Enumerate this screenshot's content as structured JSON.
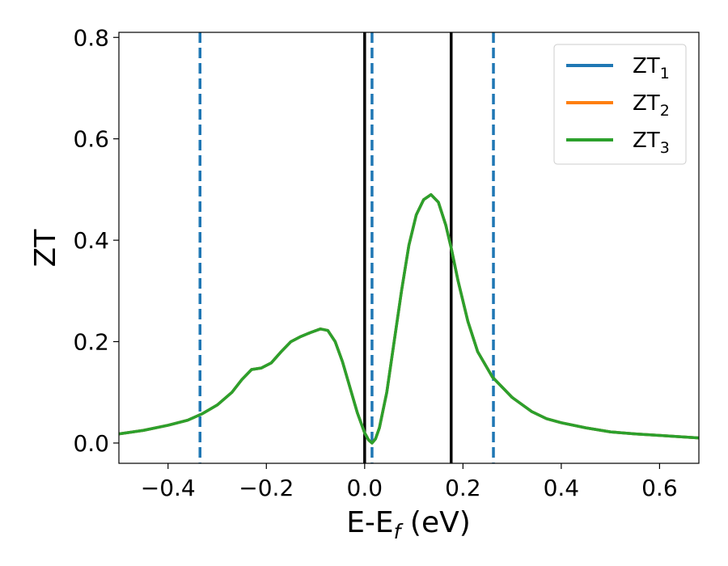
{
  "chart_data": {
    "type": "line",
    "xlabel": "E-E",
    "xlabel_subscript": "f",
    "xlabel_suffix": " (eV)",
    "ylabel": "ZT",
    "xlim": [
      -0.5,
      0.68
    ],
    "ylim": [
      -0.04,
      0.81
    ],
    "xticks": [
      -0.4,
      -0.2,
      0.0,
      0.2,
      0.4,
      0.6
    ],
    "xtick_labels": [
      "−0.4",
      "−0.2",
      "0.0",
      "0.2",
      "0.4",
      "0.6"
    ],
    "yticks": [
      0.0,
      0.2,
      0.4,
      0.6,
      0.8
    ],
    "ytick_labels": [
      "0.0",
      "0.2",
      "0.4",
      "0.6",
      "0.8"
    ],
    "grid": false,
    "legend_position": "top-right",
    "series": [
      {
        "name": "ZT",
        "subscript": "1",
        "color": "#1f77b4",
        "x": [
          -0.5,
          -0.45,
          -0.4,
          -0.36,
          -0.33,
          -0.3,
          -0.27,
          -0.25,
          -0.23,
          -0.21,
          -0.19,
          -0.17,
          -0.15,
          -0.13,
          -0.11,
          -0.09,
          -0.075,
          -0.06,
          -0.045,
          -0.03,
          -0.015,
          0.0,
          0.008,
          0.015,
          0.022,
          0.03,
          0.045,
          0.06,
          0.075,
          0.09,
          0.105,
          0.12,
          0.135,
          0.15,
          0.165,
          0.176,
          0.19,
          0.21,
          0.23,
          0.26,
          0.3,
          0.34,
          0.37,
          0.4,
          0.45,
          0.5,
          0.55,
          0.6,
          0.68
        ],
        "y": [
          0.018,
          0.025,
          0.035,
          0.045,
          0.058,
          0.075,
          0.1,
          0.125,
          0.145,
          0.148,
          0.158,
          0.18,
          0.2,
          0.21,
          0.218,
          0.225,
          0.222,
          0.2,
          0.16,
          0.11,
          0.06,
          0.02,
          0.006,
          0.0,
          0.008,
          0.03,
          0.1,
          0.2,
          0.3,
          0.39,
          0.45,
          0.48,
          0.49,
          0.475,
          0.43,
          0.385,
          0.32,
          0.24,
          0.18,
          0.13,
          0.09,
          0.062,
          0.048,
          0.04,
          0.03,
          0.022,
          0.018,
          0.015,
          0.01
        ]
      },
      {
        "name": "ZT",
        "subscript": "2",
        "color": "#ff7f0e",
        "x": [
          -0.5,
          -0.45,
          -0.4,
          -0.36,
          -0.33,
          -0.3,
          -0.27,
          -0.25,
          -0.23,
          -0.21,
          -0.19,
          -0.17,
          -0.15,
          -0.13,
          -0.11,
          -0.09,
          -0.075,
          -0.06,
          -0.045,
          -0.03,
          -0.015,
          0.0,
          0.008,
          0.015,
          0.022,
          0.03,
          0.045,
          0.06,
          0.075,
          0.09,
          0.105,
          0.12,
          0.135,
          0.15,
          0.165,
          0.176,
          0.19,
          0.21,
          0.23,
          0.26,
          0.3,
          0.34,
          0.37,
          0.4,
          0.45,
          0.5,
          0.55,
          0.6,
          0.68
        ],
        "y": [
          0.018,
          0.025,
          0.035,
          0.045,
          0.058,
          0.075,
          0.1,
          0.125,
          0.145,
          0.148,
          0.158,
          0.18,
          0.2,
          0.21,
          0.218,
          0.225,
          0.222,
          0.2,
          0.16,
          0.11,
          0.06,
          0.02,
          0.006,
          0.0,
          0.008,
          0.03,
          0.1,
          0.2,
          0.3,
          0.39,
          0.45,
          0.48,
          0.49,
          0.475,
          0.43,
          0.385,
          0.32,
          0.24,
          0.18,
          0.13,
          0.09,
          0.062,
          0.048,
          0.04,
          0.03,
          0.022,
          0.018,
          0.015,
          0.01
        ]
      },
      {
        "name": "ZT",
        "subscript": "3",
        "color": "#2ca02c",
        "x": [
          -0.5,
          -0.45,
          -0.4,
          -0.36,
          -0.33,
          -0.3,
          -0.27,
          -0.25,
          -0.23,
          -0.21,
          -0.19,
          -0.17,
          -0.15,
          -0.13,
          -0.11,
          -0.09,
          -0.075,
          -0.06,
          -0.045,
          -0.03,
          -0.015,
          0.0,
          0.008,
          0.015,
          0.022,
          0.03,
          0.045,
          0.06,
          0.075,
          0.09,
          0.105,
          0.12,
          0.135,
          0.15,
          0.165,
          0.176,
          0.19,
          0.21,
          0.23,
          0.26,
          0.3,
          0.34,
          0.37,
          0.4,
          0.45,
          0.5,
          0.55,
          0.6,
          0.68
        ],
        "y": [
          0.018,
          0.025,
          0.035,
          0.045,
          0.058,
          0.075,
          0.1,
          0.125,
          0.145,
          0.148,
          0.158,
          0.18,
          0.2,
          0.21,
          0.218,
          0.225,
          0.222,
          0.2,
          0.16,
          0.11,
          0.06,
          0.02,
          0.006,
          0.0,
          0.008,
          0.03,
          0.1,
          0.2,
          0.3,
          0.39,
          0.45,
          0.48,
          0.49,
          0.475,
          0.43,
          0.385,
          0.32,
          0.24,
          0.18,
          0.13,
          0.09,
          0.062,
          0.048,
          0.04,
          0.03,
          0.022,
          0.018,
          0.015,
          0.01
        ]
      }
    ],
    "vlines": [
      {
        "x": -0.335,
        "style": "dashed",
        "color": "#1f77b4"
      },
      {
        "x": 0.0,
        "style": "solid",
        "color": "#000000"
      },
      {
        "x": 0.015,
        "style": "dashed",
        "color": "#1f77b4"
      },
      {
        "x": 0.176,
        "style": "solid",
        "color": "#000000"
      },
      {
        "x": 0.262,
        "style": "dashed",
        "color": "#1f77b4"
      }
    ]
  }
}
